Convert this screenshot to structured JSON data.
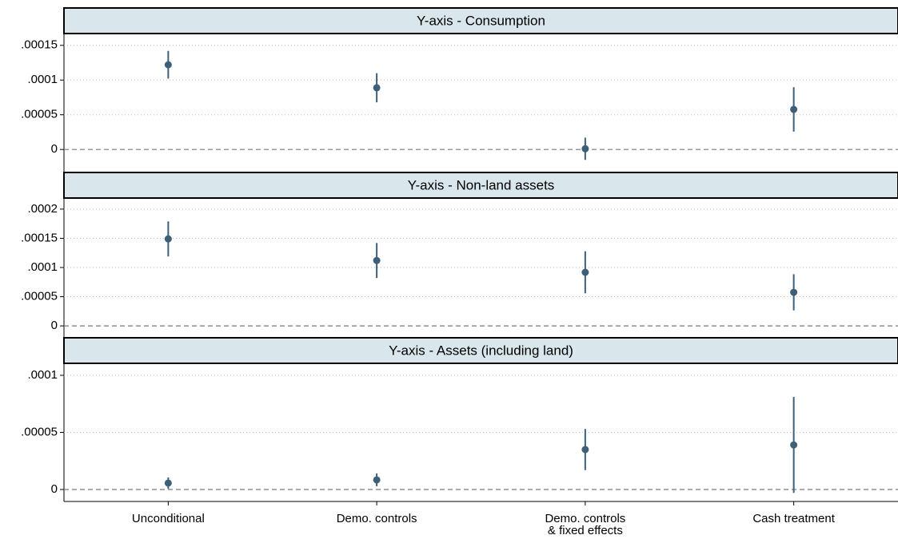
{
  "chart_data": {
    "type": "errorbar",
    "color": "#3e5f78",
    "grid": true,
    "categories": [
      "Unconditional",
      "Demo. controls",
      "Demo. controls\n& fixed effects",
      "Cash treatment"
    ],
    "panels": [
      {
        "title": "Y-axis - Consumption",
        "values": [
          0.000122,
          8.89e-05,
          1e-06,
          5.77e-05
        ],
        "errors": [
          2e-05,
          2.1e-05,
          1.6e-05,
          3.2e-05
        ],
        "ylim": [
          -3.2e-05,
          0.000167
        ],
        "yticks": [
          0,
          {
            "value": 5e-05,
            "label": ".00005"
          },
          {
            "value": 0.0001,
            "label": ".0001"
          },
          {
            "value": 0.00015,
            "label": ".00015"
          }
        ]
      },
      {
        "title": "Y-axis - Non-land assets",
        "values": [
          0.000149,
          0.000112,
          9.18e-05,
          5.75e-05
        ],
        "errors": [
          3e-05,
          3e-05,
          3.6e-05,
          3.1e-05
        ],
        "ylim": [
          -1.9e-05,
          0.000219
        ],
        "yticks": [
          0,
          {
            "value": 5e-05,
            "label": ".00005"
          },
          {
            "value": 0.0001,
            "label": ".0001"
          },
          {
            "value": 0.00015,
            "label": ".00015"
          },
          {
            "value": 0.0002,
            "label": ".0002"
          }
        ]
      },
      {
        "title": "Y-axis - Assets (including land)",
        "values": [
          5.6e-06,
          8.4e-06,
          3.5e-05,
          3.9e-05
        ],
        "errors": [
          5e-06,
          5.6e-06,
          1.8e-05,
          4.2e-05
        ],
        "ylim": [
          -1.05e-05,
          0.0001105
        ],
        "yticks": [
          0,
          {
            "value": 5e-05,
            "label": ".00005"
          },
          {
            "value": 0.0001,
            "label": ".0001"
          }
        ]
      }
    ]
  }
}
